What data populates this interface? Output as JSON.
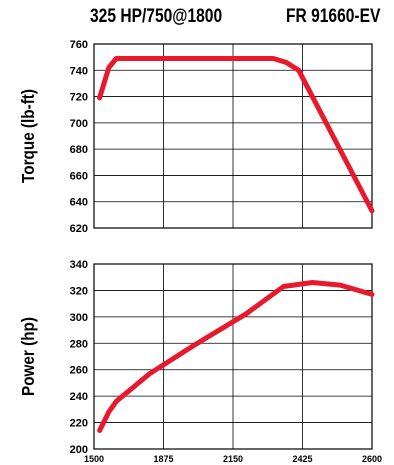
{
  "header": {
    "left": "325 HP/750@1800",
    "right": "FR 91660-EV"
  },
  "colors": {
    "series": "#e8192c",
    "grid": "#000000",
    "background": "#ffffff"
  },
  "chart_data": [
    {
      "type": "line",
      "ylabel": "Torque (lb-ft)",
      "xlim": [
        1500,
        2600
      ],
      "ylim": [
        620,
        760
      ],
      "xticks": [
        1500,
        1875,
        2150,
        2425,
        2600
      ],
      "yticks": [
        620,
        640,
        660,
        680,
        700,
        720,
        740,
        760
      ],
      "grid": true,
      "series": [
        {
          "x": [
            1530,
            1580,
            1620,
            1800,
            2000,
            2200,
            2310,
            2360,
            2410,
            2600
          ],
          "y": [
            719,
            742,
            749,
            749,
            749,
            749,
            749,
            746,
            740,
            633
          ]
        }
      ]
    },
    {
      "type": "line",
      "ylabel": "Power (hp)",
      "xlim": [
        1500,
        2600
      ],
      "ylim": [
        200,
        340
      ],
      "xticks": [
        1500,
        1875,
        2150,
        2425,
        2600
      ],
      "yticks": [
        200,
        220,
        240,
        260,
        280,
        300,
        320,
        340
      ],
      "grid": true,
      "series": [
        {
          "x": [
            1530,
            1580,
            1620,
            1800,
            2000,
            2200,
            2350,
            2450,
            2520,
            2600
          ],
          "y": [
            214,
            228,
            236,
            257,
            279,
            302,
            323,
            326,
            324,
            317
          ]
        }
      ]
    }
  ],
  "x_tick_labels": [
    "1500",
    "1875",
    "2150",
    "2425",
    "2600"
  ]
}
